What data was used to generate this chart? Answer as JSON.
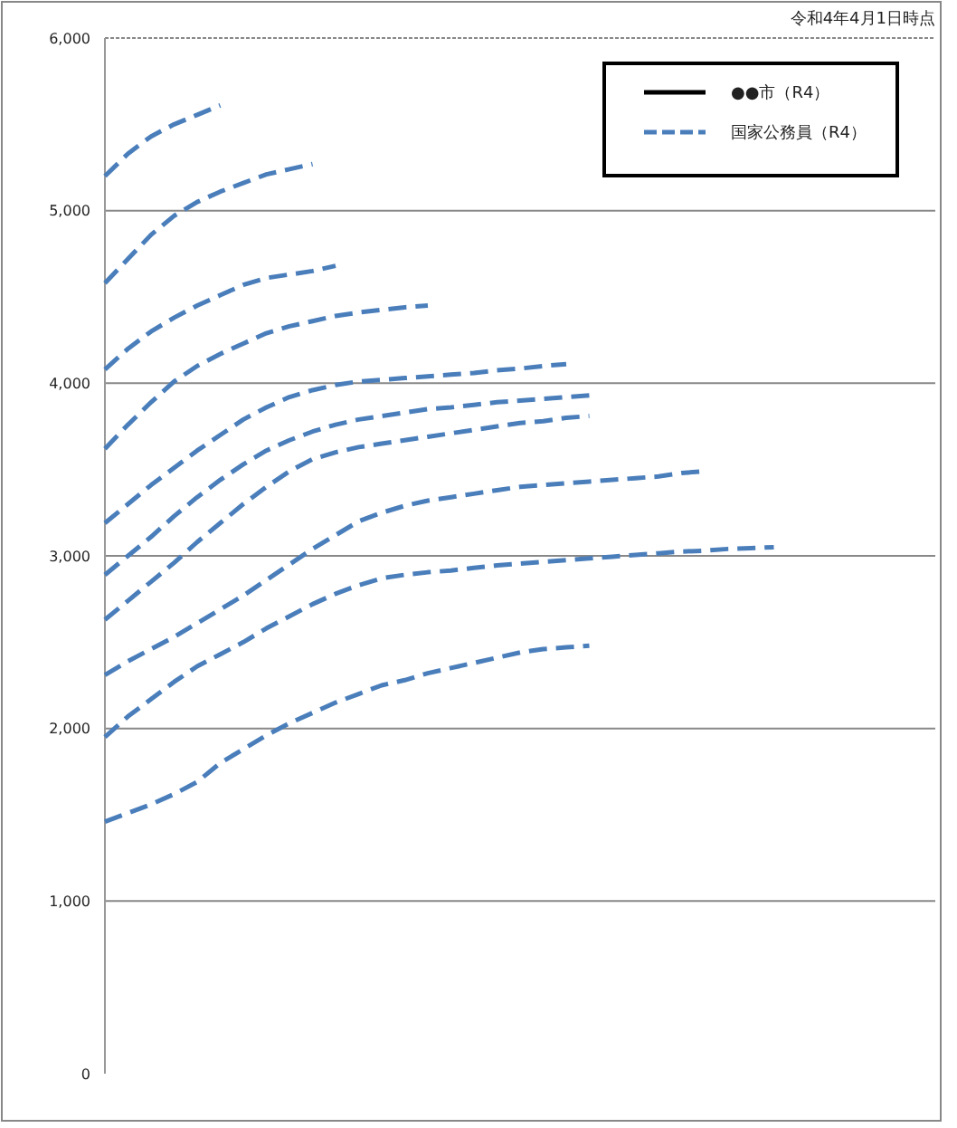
{
  "chart_data": {
    "type": "line",
    "annotations": [
      "令和4年4月1日時点"
    ],
    "categories": [
      null,
      null,
      null,
      null,
      null,
      null,
      null,
      null,
      null,
      null,
      null,
      null,
      null,
      null,
      null,
      null,
      null,
      null,
      null,
      null,
      null,
      null,
      null,
      null,
      null,
      null,
      null,
      null,
      null,
      null,
      null,
      null,
      null,
      null,
      null,
      null,
      null
    ],
    "ylim": [
      0,
      6000
    ],
    "yticks": [
      0,
      {
        "value": 1000,
        "label": "1,000"
      },
      {
        "value": 2000,
        "label": "2,000"
      },
      {
        "value": 3000,
        "label": "3,000"
      },
      {
        "value": 4000,
        "label": "4,000"
      },
      {
        "value": 5000,
        "label": "5,000"
      },
      {
        "value": 6000,
        "label": "6,000"
      }
    ],
    "grid": "y",
    "legend": "top right",
    "marker": "none",
    "series": [
      {
        "name": "●●市（R4）",
        "color": "#000000",
        "line_style": "solid",
        "values": [
          null,
          null,
          null,
          null,
          null,
          null,
          null,
          null,
          null,
          null,
          null,
          null,
          null,
          null,
          null,
          null,
          null,
          null,
          null,
          null,
          null,
          null,
          null,
          null,
          null,
          null,
          null,
          null,
          null,
          null,
          null,
          null,
          null,
          null,
          null,
          null,
          null
        ]
      },
      {
        "name": "国家公務員（R4）",
        "color": "#4a7ebb",
        "line_style": "dashed",
        "values": [
          5200,
          5330,
          5430,
          5500,
          5555,
          5610,
          null,
          null,
          null,
          null,
          null,
          null,
          null,
          null,
          null,
          null,
          null,
          null,
          null,
          null,
          null,
          null,
          null,
          null,
          null,
          null,
          null,
          null,
          null,
          null,
          null,
          null,
          null,
          null,
          null,
          null,
          null
        ]
      },
      {
        "color": "#4a7ebb",
        "line_style": "dashed",
        "values": [
          4580,
          4720,
          4860,
          4970,
          5050,
          5110,
          5160,
          5210,
          5240,
          5270,
          null,
          null,
          null,
          null,
          null,
          null,
          null,
          null,
          null,
          null,
          null,
          null,
          null,
          null,
          null,
          null,
          null,
          null,
          null,
          null,
          null,
          null,
          null,
          null,
          null,
          null,
          null
        ]
      },
      {
        "color": "#4a7ebb",
        "line_style": "dashed",
        "values": [
          4080,
          4200,
          4300,
          4380,
          4450,
          4510,
          4570,
          4610,
          4630,
          4650,
          4680,
          null,
          null,
          null,
          null,
          null,
          null,
          null,
          null,
          null,
          null,
          null,
          null,
          null,
          null,
          null,
          null,
          null,
          null,
          null,
          null,
          null,
          null,
          null,
          null,
          null,
          null
        ]
      },
      {
        "color": "#4a7ebb",
        "line_style": "dashed",
        "values": [
          3620,
          3760,
          3890,
          4010,
          4100,
          4170,
          4230,
          4290,
          4330,
          4360,
          4390,
          4410,
          4425,
          4440,
          4450,
          null,
          null,
          null,
          null,
          null,
          null,
          null,
          null,
          null,
          null,
          null,
          null,
          null,
          null,
          null,
          null,
          null,
          null,
          null,
          null,
          null,
          null
        ]
      },
      {
        "color": "#4a7ebb",
        "line_style": "dashed",
        "values": [
          3190,
          3300,
          3410,
          3510,
          3610,
          3700,
          3790,
          3860,
          3920,
          3960,
          3990,
          4010,
          4020,
          4030,
          4040,
          4050,
          4060,
          4075,
          4085,
          4100,
          4110,
          null,
          null,
          null,
          null,
          null,
          null,
          null,
          null,
          null,
          null,
          null,
          null,
          null,
          null,
          null,
          null
        ]
      },
      {
        "color": "#4a7ebb",
        "line_style": "dashed",
        "values": [
          2890,
          3000,
          3110,
          3230,
          3340,
          3440,
          3530,
          3610,
          3670,
          3720,
          3760,
          3790,
          3810,
          3830,
          3850,
          3860,
          3875,
          3890,
          3900,
          3910,
          3920,
          3930,
          null,
          null,
          null,
          null,
          null,
          null,
          null,
          null,
          null,
          null,
          null,
          null,
          null,
          null,
          null
        ]
      },
      {
        "color": "#4a7ebb",
        "line_style": "dashed",
        "values": [
          2630,
          2740,
          2850,
          2960,
          3080,
          3190,
          3300,
          3400,
          3490,
          3560,
          3600,
          3630,
          3650,
          3670,
          3690,
          3710,
          3730,
          3750,
          3770,
          3780,
          3800,
          3810,
          null,
          null,
          null,
          null,
          null,
          null,
          null,
          null,
          null,
          null,
          null,
          null,
          null,
          null,
          null
        ]
      },
      {
        "color": "#4a7ebb",
        "line_style": "dashed",
        "values": [
          2310,
          2390,
          2460,
          2530,
          2610,
          2690,
          2770,
          2860,
          2950,
          3040,
          3120,
          3200,
          3250,
          3290,
          3320,
          3340,
          3360,
          3380,
          3400,
          3410,
          3420,
          3430,
          3440,
          3450,
          3460,
          3480,
          3490,
          null,
          null,
          null,
          null,
          null,
          null,
          null,
          null,
          null,
          null
        ]
      },
      {
        "color": "#4a7ebb",
        "line_style": "dashed",
        "values": [
          1950,
          2070,
          2170,
          2270,
          2360,
          2430,
          2500,
          2580,
          2650,
          2720,
          2780,
          2830,
          2870,
          2890,
          2905,
          2915,
          2930,
          2945,
          2955,
          2965,
          2975,
          2985,
          2995,
          3005,
          3015,
          3025,
          3030,
          3040,
          3045,
          3050,
          null,
          null,
          null,
          null,
          null,
          null,
          null
        ]
      },
      {
        "color": "#4a7ebb",
        "line_style": "dashed",
        "values": [
          1460,
          1510,
          1560,
          1620,
          1690,
          1800,
          1880,
          1960,
          2030,
          2090,
          2150,
          2200,
          2250,
          2280,
          2320,
          2350,
          2380,
          2410,
          2440,
          2460,
          2470,
          2480,
          null,
          null,
          null,
          null,
          null,
          null,
          null,
          null,
          null,
          null,
          null,
          null,
          null,
          null,
          null
        ]
      }
    ]
  }
}
